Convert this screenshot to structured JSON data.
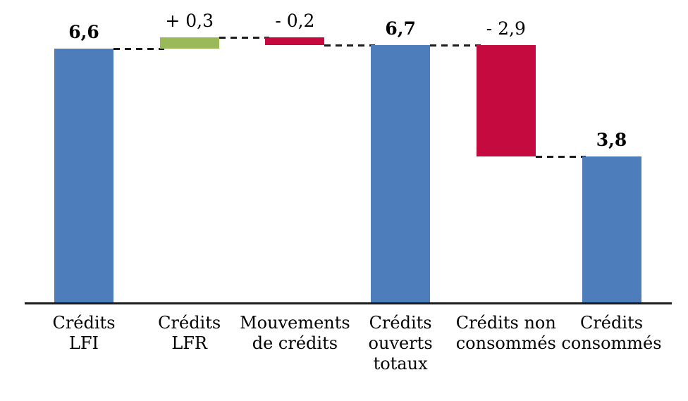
{
  "chart_data": {
    "type": "waterfall",
    "title": "",
    "ylim": [
      0,
      6.9
    ],
    "grid": false,
    "legend": null,
    "colors": {
      "total": "#4D7DBB",
      "increase": "#9ABA58",
      "decrease": "#C40A3E",
      "axis": "#1c1c1c",
      "connector": "#1c1c1c",
      "text": "#000000"
    },
    "bars": [
      {
        "category": "Crédits\nLFI",
        "value": 6.6,
        "start": 0,
        "end": 6.6,
        "role": "total",
        "value_label": "6,6",
        "emphasis": true
      },
      {
        "category": "Crédits\nLFR",
        "value": 0.3,
        "start": 6.6,
        "end": 6.9,
        "role": "increase",
        "value_label": "+ 0,3",
        "emphasis": false
      },
      {
        "category": "Mouvements\nde crédits",
        "value": -0.2,
        "start": 6.9,
        "end": 6.7,
        "role": "decrease",
        "value_label": "- 0,2",
        "emphasis": false
      },
      {
        "category": "Crédits\nouverts\ntotaux",
        "value": 6.7,
        "start": 0,
        "end": 6.7,
        "role": "total",
        "value_label": "6,7",
        "emphasis": true
      },
      {
        "category": "Crédits non\nconsommés",
        "value": -2.9,
        "start": 6.7,
        "end": 3.8,
        "role": "decrease",
        "value_label": "- 2,9",
        "emphasis": false
      },
      {
        "category": "Crédits\nconsommés",
        "value": 3.8,
        "start": 0,
        "end": 3.8,
        "role": "total",
        "value_label": "3,8",
        "emphasis": true
      }
    ],
    "connectors": [
      {
        "level": 6.6,
        "from_bar": 0,
        "to_bar": 1
      },
      {
        "level": 6.9,
        "from_bar": 1,
        "to_bar": 2
      },
      {
        "level": 6.7,
        "from_bar": 2,
        "to_bar": 3
      },
      {
        "level": 6.7,
        "from_bar": 3,
        "to_bar": 4
      },
      {
        "level": 3.8,
        "from_bar": 4,
        "to_bar": 5
      }
    ]
  }
}
